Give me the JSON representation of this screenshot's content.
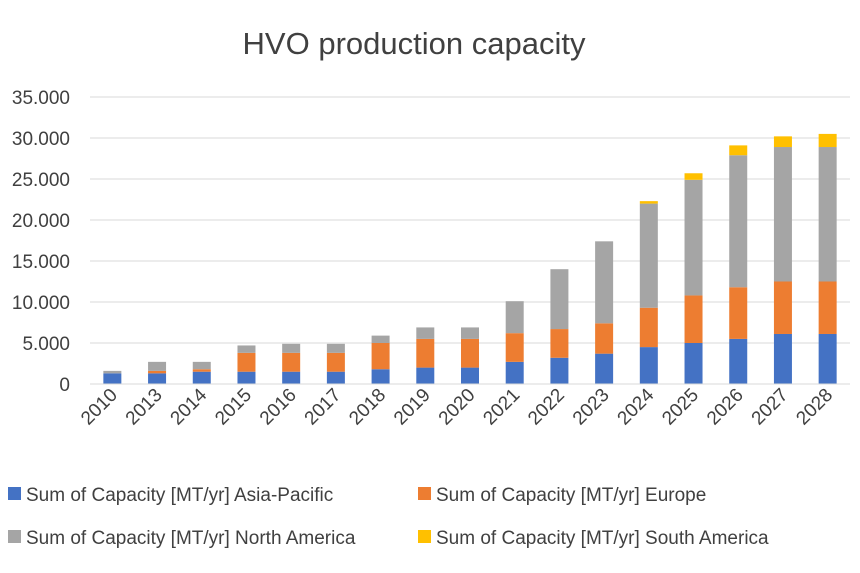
{
  "chart_data": {
    "type": "bar",
    "stacked": true,
    "title": "HVO production capacity",
    "xlabel": "",
    "ylabel": "",
    "ylim": [
      0,
      35000
    ],
    "yticks": [
      0,
      5000,
      10000,
      15000,
      20000,
      25000,
      30000,
      35000
    ],
    "ytick_labels": [
      "0",
      "5.000",
      "10.000",
      "15.000",
      "20.000",
      "25.000",
      "30.000",
      "35.000"
    ],
    "grid": true,
    "legend_position": "bottom",
    "categories": [
      "2010",
      "2013",
      "2014",
      "2015",
      "2016",
      "2017",
      "2018",
      "2019",
      "2020",
      "2021",
      "2022",
      "2023",
      "2024",
      "2025",
      "2026",
      "2027",
      "2028"
    ],
    "series": [
      {
        "name": "Sum of Capacity [MT/yr] Asia-Pacific",
        "color": "#4472c4",
        "values": [
          1300,
          1300,
          1500,
          1500,
          1500,
          1500,
          1800,
          2000,
          2000,
          2700,
          3200,
          3700,
          4500,
          5000,
          5500,
          6100,
          6100
        ]
      },
      {
        "name": "Sum of Capacity [MT/yr] Europe",
        "color": "#ed7d31",
        "values": [
          0,
          300,
          300,
          2300,
          2300,
          2300,
          3200,
          3500,
          3500,
          3500,
          3500,
          3700,
          4800,
          5800,
          6300,
          6400,
          6400
        ]
      },
      {
        "name": "Sum of Capacity [MT/yr] North America",
        "color": "#a5a5a5",
        "values": [
          300,
          1100,
          900,
          900,
          1100,
          1100,
          900,
          1400,
          1400,
          3900,
          7300,
          10000,
          12700,
          14100,
          16100,
          16400,
          16400
        ]
      },
      {
        "name": "Sum of Capacity [MT/yr] South America",
        "color": "#ffc000",
        "values": [
          0,
          0,
          0,
          0,
          0,
          0,
          0,
          0,
          0,
          0,
          0,
          0,
          300,
          800,
          1200,
          1300,
          1600
        ]
      }
    ]
  }
}
